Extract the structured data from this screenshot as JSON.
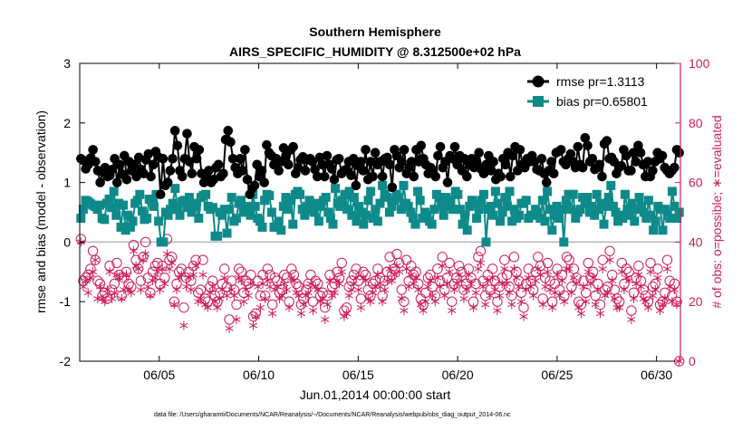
{
  "chart_data": {
    "type": "line",
    "title": "Southern Hemisphere",
    "subtitle": "AIRS_SPECIFIC_HUMIDITY @ 8.312500e+02 hPa",
    "xlabel": "Jun.01,2014 00:00:00 start",
    "ylabel_left": "rmse and bias (model - observation)",
    "ylabel_right": "# of obs: o=possible; ∗=evaluated",
    "footer": "data file: /Users/gharamti/Documents/NCAR/Reanalysis/~/Documents/NCAR/Reanalysis/webpub/obs_diag_output_2014-06.nc",
    "xlim": [
      1,
      31.2
    ],
    "ylim_left": [
      -2,
      3
    ],
    "ylim_right": [
      0,
      100
    ],
    "xticks": [
      {
        "value": 5,
        "label": "06/05"
      },
      {
        "value": 10,
        "label": "06/10"
      },
      {
        "value": 15,
        "label": "06/15"
      },
      {
        "value": 20,
        "label": "06/20"
      },
      {
        "value": 25,
        "label": "06/25"
      },
      {
        "value": 30,
        "label": "06/30"
      }
    ],
    "yticks_left": [
      "-2",
      "-1",
      "0",
      "1",
      "2",
      "3"
    ],
    "yticks_right": [
      "0",
      "20",
      "40",
      "60",
      "80",
      "100"
    ],
    "legend_position": "top-right",
    "colors": {
      "rmse": "#000000",
      "bias": "#0e8a8a",
      "obs": "#cc1e5a",
      "zero_line": "#b4b4b4"
    },
    "series": [
      {
        "name": "rmse pr=1.3113",
        "values": [
          1.4,
          1.37,
          1.23,
          1.3,
          1.41,
          1.55,
          1.35,
          1.2,
          1.0,
          1.18,
          1.25,
          1.1,
          1.12,
          1.22,
          1.4,
          1.0,
          1.3,
          1.14,
          1.45,
          1.05,
          1.35,
          1.2,
          1.3,
          1.1,
          1.42,
          1.22,
          1.15,
          1.38,
          1.48,
          1.1,
          1.3,
          1.52,
          1.43,
          0.8,
          1.4,
          0.95,
          1.0,
          1.2,
          1.4,
          1.87,
          1.62,
          1.2,
          1.1,
          1.4,
          1.82,
          1.35,
          1.15,
          1.6,
          1.4,
          1.55,
          1.15,
          1.0,
          1.1,
          1.2,
          1.0,
          1.05,
          1.25,
          1.3,
          1.1,
          1.15,
          1.72,
          1.87,
          1.68,
          1.4,
          1.25,
          1.15,
          1.4,
          1.2,
          1.55,
          1.05,
          0.8,
          0.9,
          0.95,
          1.3,
          1.1,
          1.2,
          1.0,
          1.63,
          1.5,
          1.45,
          1.3,
          1.4,
          1.2,
          1.35,
          1.58,
          1.45,
          1.3,
          1.55,
          1.6,
          1.15,
          1.25,
          1.38,
          1.43,
          1.2,
          1.38,
          1.4,
          1.35,
          1.22,
          1.1,
          1.42,
          1.3,
          1.1,
          1.45,
          1.3,
          1.23,
          1.05,
          1.38,
          1.4,
          1.15,
          1.2,
          1.22,
          1.35,
          1.12,
          1.4,
          0.95,
          1.28,
          1.35,
          1.2,
          1.55,
          1.05,
          1.35,
          1.1,
          1.5,
          1.3,
          1.35,
          1.1,
          1.4,
          1.42,
          1.3,
          0.92,
          1.55,
          1.45,
          1.25,
          1.35,
          1.55,
          1.15,
          1.25,
          1.35,
          1.1,
          1.55,
          1.35,
          1.62,
          1.4,
          1.3,
          1.15,
          1.25,
          1.2,
          1.1,
          1.45,
          1.6,
          1.25,
          1.35,
          1.0,
          1.45,
          1.4,
          1.6,
          1.3,
          1.45,
          1.2,
          1.4,
          1.1,
          1.3,
          1.4,
          1.25,
          1.35,
          1.5,
          1.22,
          1.15,
          1.3,
          1.45,
          1.2,
          1.35,
          1.05,
          1.15,
          1.1,
          1.4,
          1.3,
          1.5,
          1.1,
          1.45,
          1.6,
          1.2,
          1.55,
          1.3,
          1.25,
          1.4,
          1.35,
          1.45,
          1.35,
          1.22,
          1.2,
          1.4,
          1.15,
          1.0,
          1.2,
          1.35,
          1.15,
          1.5,
          1.52,
          1.55,
          1.35,
          1.3,
          1.4,
          1.48,
          1.35,
          1.25,
          1.6,
          1.3,
          1.25,
          1.75,
          1.62,
          1.35,
          1.4,
          1.22,
          1.25,
          1.3,
          1.1,
          1.65,
          1.7,
          1.4,
          1.42,
          1.35,
          1.15,
          1.25,
          1.28,
          1.55,
          1.45,
          1.2,
          1.2,
          1.5,
          1.35,
          1.62,
          1.5,
          1.3,
          1.1,
          1.35,
          1.1,
          1.2,
          1.35,
          1.5,
          1.4,
          1.45,
          1.25,
          1.2,
          1.15,
          1.2,
          1.25,
          1.55,
          1.5
        ]
      },
      {
        "name": "bias pr=0.65801",
        "values": [
          0.4,
          0.55,
          0.7,
          0.68,
          0.65,
          0.62,
          0.6,
          0.55,
          0.62,
          0.4,
          0.38,
          0.65,
          0.72,
          0.58,
          0.85,
          0.45,
          0.65,
          0.25,
          0.62,
          0.2,
          0.45,
          0.25,
          0.35,
          0.65,
          0.7,
          0.8,
          0.52,
          0.38,
          0.4,
          0.72,
          0.7,
          0.6,
          0.8,
          0.35,
          0.0,
          0.0,
          0.5,
          0.45,
          0.55,
          0.65,
          0.9,
          0.55,
          0.45,
          0.68,
          0.7,
          0.58,
          0.75,
          0.5,
          0.65,
          0.6,
          0.4,
          0.75,
          0.78,
          0.8,
          0.6,
          0.55,
          0.58,
          0.1,
          0.1,
          0.5,
          0.45,
          0.55,
          0.15,
          0.55,
          0.75,
          0.35,
          0.4,
          0.65,
          0.7,
          0.5,
          0.55,
          0.6,
          0.45,
          0.8,
          0.6,
          0.4,
          0.35,
          0.25,
          0.7,
          0.8,
          0.78,
          0.5,
          0.25,
          0.25,
          0.35,
          0.2,
          0.6,
          0.75,
          0.55,
          0.7,
          0.3,
          0.8,
          0.85,
          0.8,
          0.55,
          0.45,
          0.6,
          0.7,
          0.55,
          0.5,
          0.65,
          0.35,
          0.6,
          0.7,
          0.75,
          0.5,
          0.4,
          0.3,
          0.9,
          0.65,
          0.6,
          0.7,
          0.8,
          0.55,
          0.85,
          0.45,
          0.75,
          0.35,
          0.6,
          0.5,
          0.3,
          0.45,
          0.7,
          0.85,
          0.4,
          0.55,
          0.35,
          0.65,
          0.95,
          0.8,
          0.75,
          0.5,
          0.6,
          0.7,
          0.8,
          0.75,
          0.55,
          0.95,
          0.65,
          0.6,
          0.5,
          0.4,
          0.3,
          0.85,
          0.7,
          0.4,
          0.5,
          0.45,
          0.35,
          0.3,
          0.55,
          0.8,
          0.75,
          0.6,
          0.45,
          0.75,
          0.6,
          0.7,
          0.55,
          0.85,
          0.8,
          0.55,
          0.3,
          0.45,
          0.2,
          0.6,
          0.7,
          0.65,
          0.4,
          0.55,
          0.7,
          0.8,
          0.0,
          0.55,
          0.6,
          0.45,
          0.85,
          0.65,
          0.35,
          0.5,
          0.75,
          0.6,
          0.85,
          0.35,
          0.55,
          0.4,
          0.45,
          0.65,
          0.65,
          0.7,
          0.4,
          0.45,
          0.45,
          0.55,
          0.5,
          0.4,
          0.7,
          0.35,
          0.85,
          0.55,
          0.2,
          0.45,
          0.6,
          0.4,
          0.55,
          0.0,
          0.7,
          0.8,
          0.55,
          0.8,
          0.4,
          0.5,
          0.55,
          0.75,
          0.65,
          0.75,
          0.5,
          0.6,
          0.45,
          0.8,
          0.55,
          0.65,
          0.3,
          0.6,
          0.75,
          0.95,
          0.6,
          0.5,
          0.35,
          0.45,
          0.4,
          0.8,
          0.55,
          0.45,
          0.65,
          0.35,
          0.55,
          0.75,
          0.6,
          0.5,
          0.4,
          0.7,
          0.45,
          0.2,
          0.35,
          0.6,
          0.55,
          0.2,
          0.55,
          0.45,
          0.4,
          0.85,
          0.6,
          0.4,
          0.5
        ]
      }
    ],
    "obs_possible": [
      41,
      27,
      28,
      29,
      31,
      37,
      34,
      27,
      26,
      22,
      23,
      21,
      32,
      24,
      26,
      33,
      29,
      22,
      28,
      30,
      26,
      25,
      39,
      34,
      31,
      27,
      35,
      40,
      28,
      23,
      30,
      32,
      33,
      26,
      32,
      28,
      41,
      34,
      35,
      20,
      26,
      30,
      31,
      18,
      28,
      30,
      27,
      32,
      34,
      23,
      24,
      34,
      21,
      20,
      25,
      27,
      22,
      20,
      23,
      26,
      31,
      25,
      14,
      27,
      24,
      19,
      31,
      30,
      23,
      27,
      26,
      29,
      15,
      16,
      27,
      22,
      29,
      22,
      31,
      29,
      19,
      28,
      27,
      23,
      24,
      29,
      28,
      20,
      31,
      29,
      26,
      25,
      19,
      21,
      24,
      26,
      29,
      20,
      27,
      26,
      22,
      23,
      18,
      22,
      29,
      25,
      26,
      30,
      28,
      33,
      17,
      18,
      25,
      27,
      29,
      31,
      27,
      21,
      30,
      29,
      24,
      22,
      26,
      27,
      31,
      28,
      22,
      27,
      30,
      35,
      29,
      31,
      36,
      33,
      24,
      20,
      34,
      27,
      32,
      29,
      30,
      26,
      21,
      19,
      23,
      28,
      29,
      25,
      22,
      31,
      27,
      35,
      24,
      28,
      33,
      20,
      26,
      28,
      32,
      30,
      24,
      26,
      31,
      28,
      20,
      26,
      35,
      37,
      27,
      22,
      29,
      24,
      31,
      27,
      20,
      25,
      28,
      34,
      29,
      25,
      22,
      35,
      30,
      27,
      23,
      18,
      26,
      31,
      27,
      24,
      30,
      35,
      32,
      21,
      28,
      33,
      27,
      20,
      26,
      31,
      24,
      29,
      22,
      35,
      34,
      25,
      31,
      28,
      20,
      19,
      27,
      23,
      33,
      28,
      30,
      22,
      26,
      19,
      34,
      24,
      25,
      37,
      29,
      24,
      21,
      20,
      33,
      26,
      31,
      30,
      17,
      23,
      28,
      32,
      27,
      24,
      22,
      20,
      33,
      25,
      26,
      31,
      19,
      20,
      23,
      34,
      27,
      22,
      26,
      20,
      0
    ],
    "obs_evaluated": [
      40,
      25,
      27,
      23,
      28,
      30,
      34,
      21,
      25,
      21,
      20,
      24,
      30,
      21,
      23,
      29,
      28,
      21,
      24,
      29,
      24,
      23,
      37,
      32,
      31,
      24,
      34,
      36,
      25,
      22,
      27,
      28,
      30,
      24,
      31,
      26,
      36,
      31,
      33,
      19,
      24,
      28,
      29,
      12,
      25,
      28,
      24,
      29,
      32,
      20,
      21,
      29,
      19,
      18,
      23,
      25,
      20,
      18,
      21,
      24,
      28,
      22,
      11,
      24,
      22,
      14,
      28,
      27,
      20,
      24,
      22,
      26,
      12,
      15,
      25,
      18,
      26,
      21,
      27,
      25,
      16,
      24,
      25,
      21,
      22,
      26,
      24,
      18,
      28,
      27,
      23,
      22,
      16,
      19,
      22,
      23,
      26,
      17,
      25,
      24,
      20,
      21,
      14,
      19,
      27,
      22,
      23,
      27,
      26,
      30,
      15,
      16,
      22,
      24,
      26,
      28,
      24,
      18,
      28,
      27,
      21,
      20,
      23,
      25,
      29,
      25,
      20,
      24,
      27,
      31,
      27,
      29,
      32,
      30,
      21,
      17,
      31,
      25,
      29,
      26,
      28,
      24,
      19,
      17,
      20,
      25,
      27,
      22,
      20,
      28,
      25,
      32,
      22,
      26,
      30,
      17,
      24,
      26,
      29,
      27,
      21,
      24,
      29,
      26,
      18,
      23,
      31,
      33,
      25,
      19,
      27,
      22,
      28,
      24,
      17,
      22,
      26,
      31,
      26,
      23,
      19,
      31,
      28,
      25,
      20,
      15,
      24,
      28,
      25,
      22,
      27,
      31,
      29,
      19,
      25,
      30,
      24,
      18,
      23,
      29,
      22,
      27,
      20,
      31,
      31,
      23,
      28,
      26,
      18,
      16,
      25,
      20,
      30,
      26,
      28,
      19,
      24,
      16,
      31,
      22,
      23,
      34,
      27,
      21,
      18,
      18,
      30,
      24,
      28,
      27,
      14,
      21,
      26,
      29,
      25,
      21,
      20,
      18,
      30,
      22,
      24,
      28,
      17,
      19,
      21,
      31,
      25,
      20,
      24,
      19,
      0
    ]
  }
}
